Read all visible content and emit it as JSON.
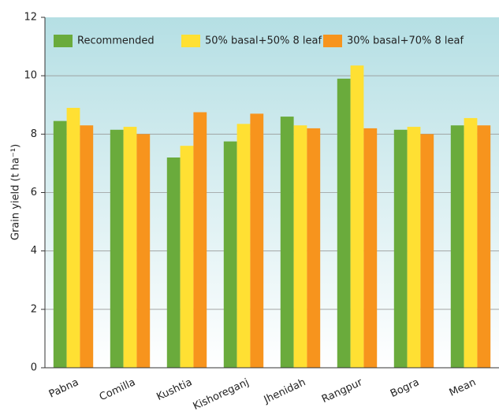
{
  "chart_data": {
    "type": "bar",
    "ylabel": "Grain yield (t ha⁻¹)",
    "categories": [
      "Pabna",
      "Comilla",
      "Kushtia",
      "Kishoreganj",
      "Jhenidah",
      "Rangpur",
      "Bogra",
      "Mean"
    ],
    "series": [
      {
        "name": "Recommended",
        "color": "#6aab3c",
        "values": [
          8.45,
          8.15,
          7.2,
          7.75,
          8.6,
          9.9,
          8.15,
          8.3
        ]
      },
      {
        "name": "50% basal+50% 8 leaf",
        "color": "#ffe033",
        "values": [
          8.9,
          8.25,
          7.6,
          8.35,
          8.3,
          10.35,
          8.25,
          8.55
        ]
      },
      {
        "name": "30% basal+70% 8 leaf",
        "color": "#f7941d",
        "values": [
          8.3,
          8.0,
          8.75,
          8.7,
          8.2,
          8.2,
          8.0,
          8.3
        ]
      }
    ],
    "ylim": [
      0,
      12
    ],
    "yticks": [
      0,
      2,
      4,
      6,
      8,
      10,
      12
    ],
    "grid": true,
    "legend": "top"
  }
}
